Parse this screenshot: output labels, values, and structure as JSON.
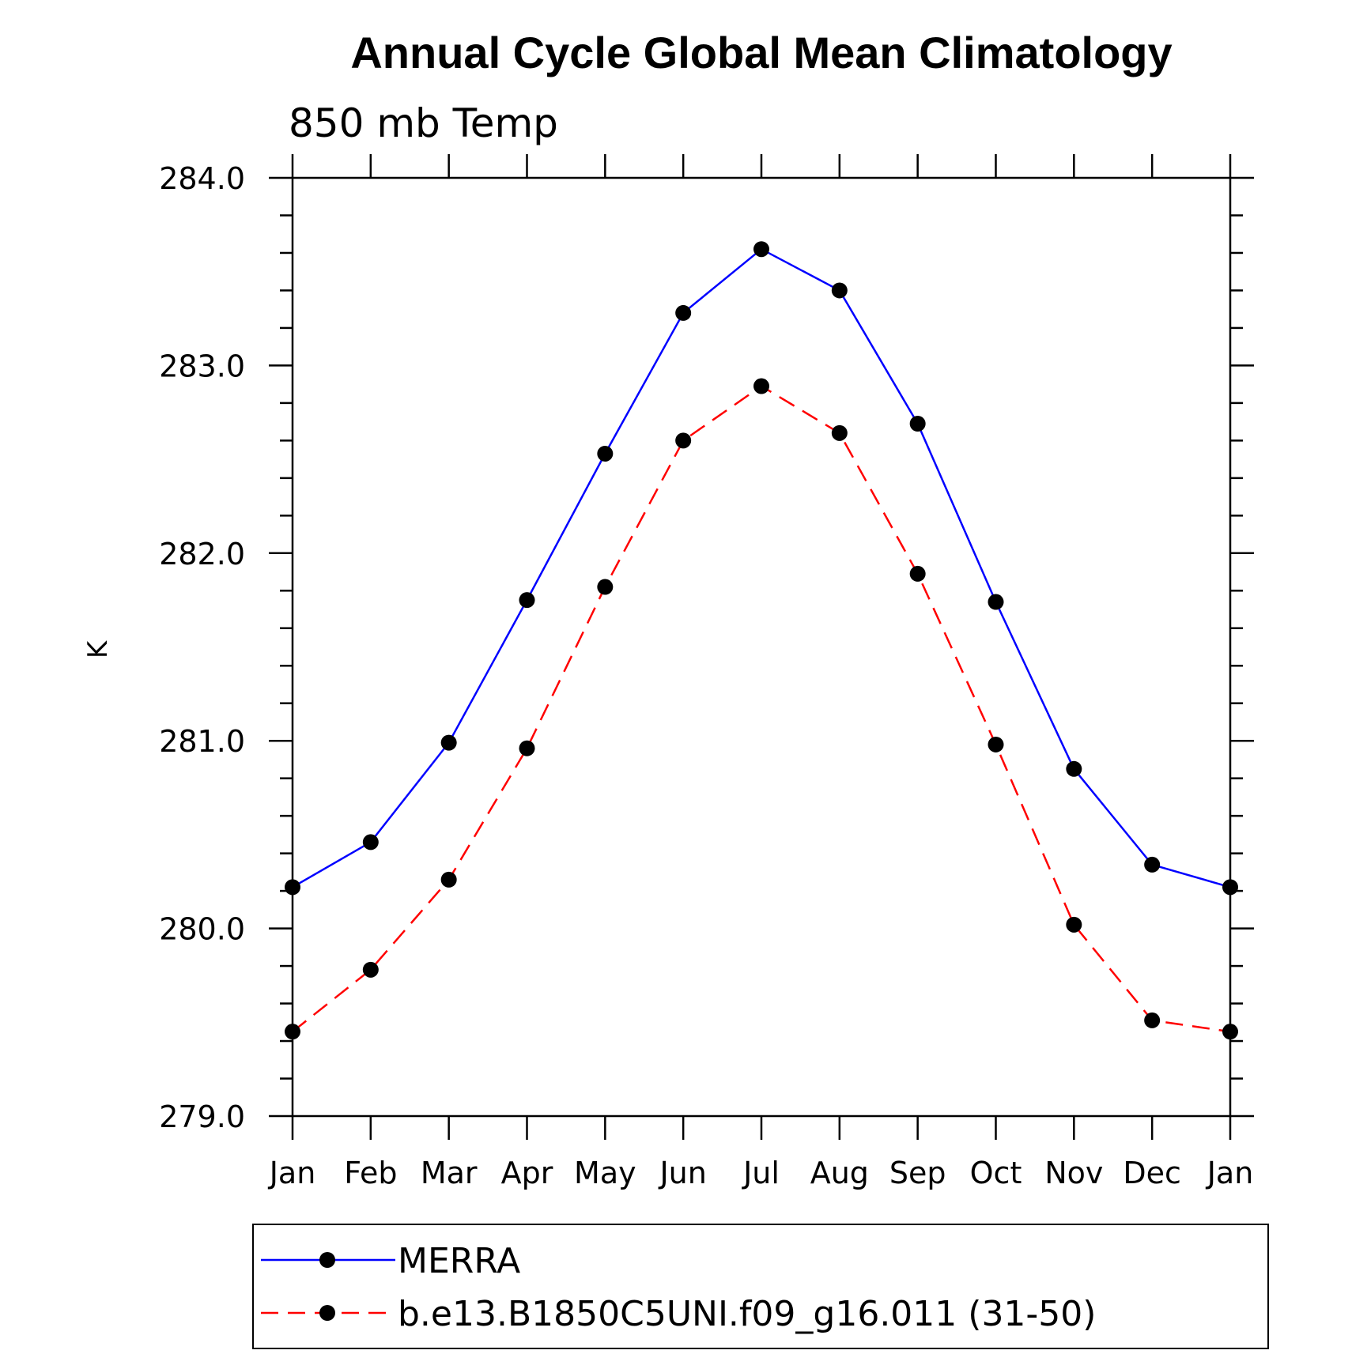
{
  "chart_data": {
    "type": "line",
    "title": "Annual Cycle Global Mean Climatology",
    "subtitle": "850 mb Temp",
    "xlabel": "",
    "ylabel": "K",
    "categories": [
      "Jan",
      "Feb",
      "Mar",
      "Apr",
      "May",
      "Jun",
      "Jul",
      "Aug",
      "Sep",
      "Oct",
      "Nov",
      "Dec",
      "Jan"
    ],
    "ylim": [
      279.0,
      284.0
    ],
    "yticks": [
      "279.0",
      "280.0",
      "281.0",
      "282.0",
      "283.0",
      "284.0"
    ],
    "legend_position": "bottom",
    "grid": false,
    "series": [
      {
        "name": "MERRA",
        "color": "#0000ff",
        "line_style": "solid",
        "marker": "filled-circle",
        "values": [
          280.22,
          280.46,
          280.99,
          281.75,
          282.53,
          283.28,
          283.62,
          283.4,
          282.69,
          281.74,
          280.85,
          280.34,
          280.22
        ]
      },
      {
        "name": "b.e13.B1850C5UNI.f09_g16.011 (31-50)",
        "color": "#ff0000",
        "line_style": "dashed",
        "marker": "filled-circle",
        "values": [
          279.45,
          279.78,
          280.26,
          280.96,
          281.82,
          282.6,
          282.89,
          282.64,
          281.89,
          280.98,
          280.02,
          279.51,
          279.45
        ]
      }
    ]
  }
}
